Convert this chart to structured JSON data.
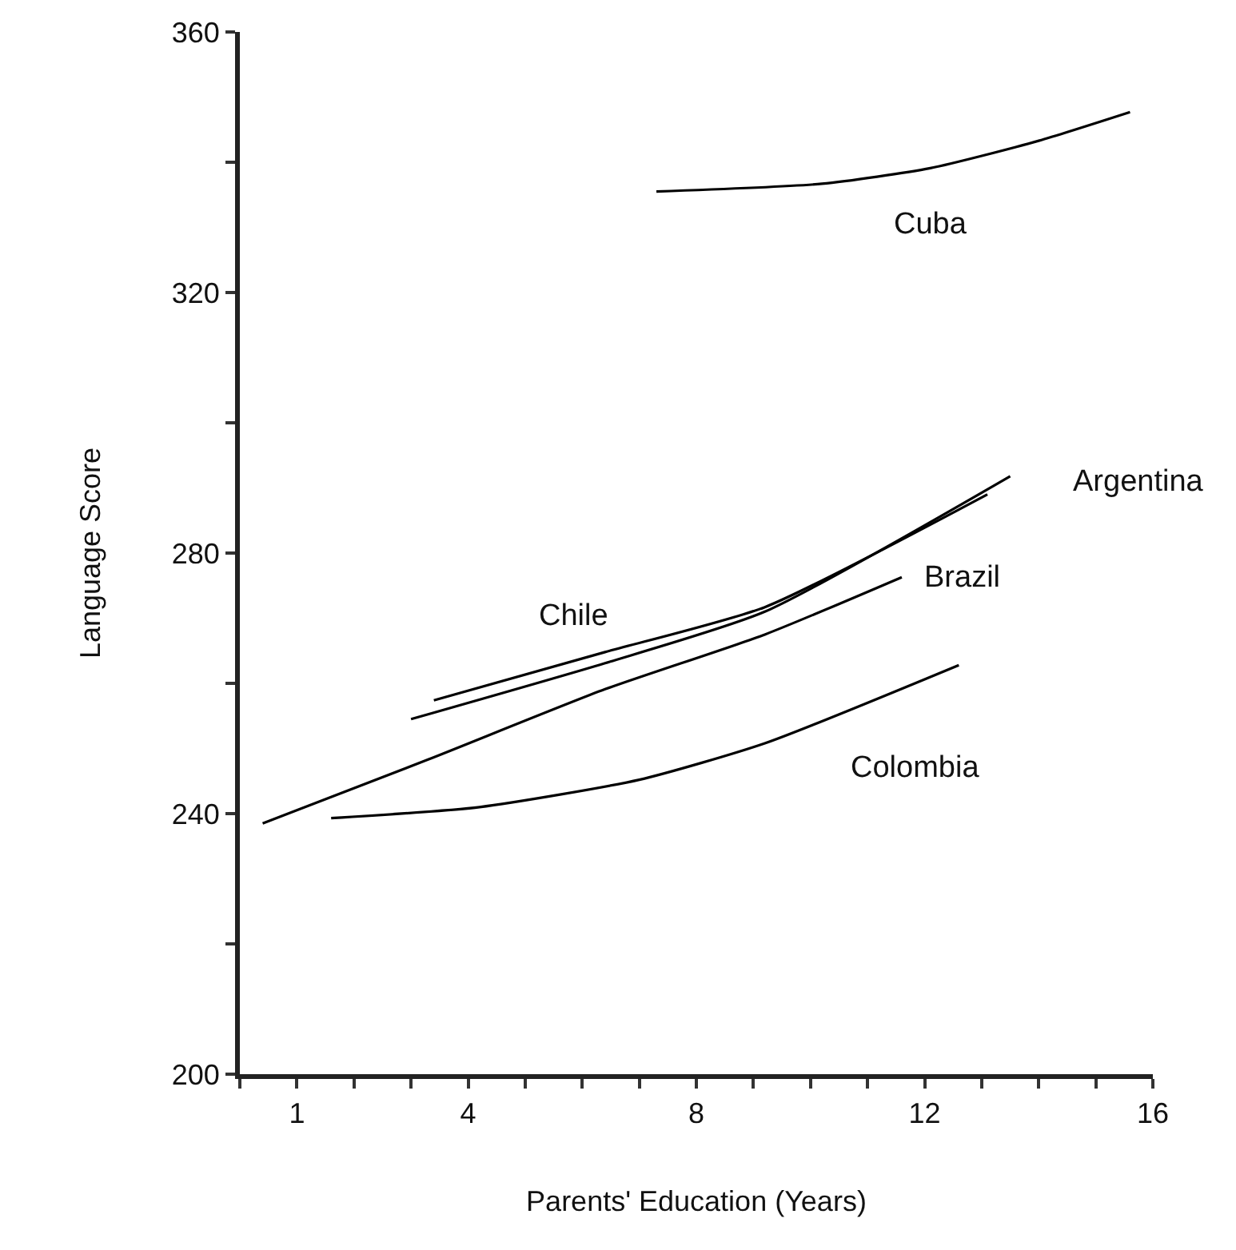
{
  "chart_data": {
    "type": "line",
    "xlabel": "Parents' Education (Years)",
    "ylabel": "Language Score",
    "xlim": [
      0,
      16
    ],
    "ylim": [
      200,
      360
    ],
    "xticks": [
      {
        "value": 0,
        "label": null
      },
      1,
      {
        "value": 2,
        "label": null
      },
      {
        "value": 3,
        "label": null
      },
      4,
      {
        "value": 5,
        "label": null
      },
      {
        "value": 6,
        "label": null
      },
      {
        "value": 7,
        "label": null
      },
      8,
      {
        "value": 9,
        "label": null
      },
      {
        "value": 10,
        "label": null
      },
      {
        "value": 11,
        "label": null
      },
      12,
      {
        "value": 13,
        "label": null
      },
      {
        "value": 14,
        "label": null
      },
      {
        "value": 15,
        "label": null
      },
      16
    ],
    "yticks": [
      200,
      {
        "value": 220,
        "label": null
      },
      240,
      {
        "value": 260,
        "label": null
      },
      280,
      {
        "value": 300,
        "label": null
      },
      320,
      {
        "value": 340,
        "label": null
      },
      360
    ],
    "grid": false,
    "legend": false,
    "marker": "none",
    "line_style": "solid",
    "series": [
      {
        "name": "Cuba",
        "color": "#000000",
        "x": [
          7.3,
          10.2,
          12.1,
          14.0,
          15.6
        ],
        "values": [
          335.5,
          336.7,
          339.1,
          343.3,
          347.7
        ]
      },
      {
        "name": "Chile",
        "color": "#000000",
        "x": [
          3.4,
          6.4,
          9.2,
          13.1
        ],
        "values": [
          257.4,
          264.8,
          271.7,
          289
        ]
      },
      {
        "name": "Argentina",
        "color": "#000000",
        "x": [
          3.0,
          6.4,
          9.2,
          13.5
        ],
        "values": [
          254.5,
          263.1,
          271,
          291.8
        ]
      },
      {
        "name": "Brazil",
        "color": "#000000",
        "x": [
          0.4,
          3.3,
          6.4,
          9.2,
          11.6
        ],
        "values": [
          238.5,
          248.3,
          259.1,
          267.5,
          276.3
        ]
      },
      {
        "name": "Colombia",
        "color": "#000000",
        "x": [
          1.6,
          4.2,
          7.0,
          9.2,
          12.6
        ],
        "values": [
          239.3,
          241,
          245.2,
          250.8,
          262.8
        ]
      }
    ]
  }
}
